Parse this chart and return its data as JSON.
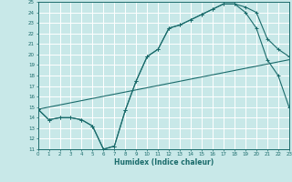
{
  "xlabel": "Humidex (Indice chaleur)",
  "bg_color": "#c8e8e8",
  "line_color": "#1a6b6b",
  "grid_color": "#ffffff",
  "ylim": [
    11,
    25
  ],
  "xlim": [
    0,
    23
  ],
  "yticks": [
    11,
    12,
    13,
    14,
    15,
    16,
    17,
    18,
    19,
    20,
    21,
    22,
    23,
    24,
    25
  ],
  "xticks": [
    0,
    1,
    2,
    3,
    4,
    5,
    6,
    7,
    8,
    9,
    10,
    11,
    12,
    13,
    14,
    15,
    16,
    17,
    18,
    19,
    20,
    21,
    22,
    23
  ],
  "line1_x": [
    0,
    1,
    2,
    3,
    4,
    5,
    6,
    7,
    8,
    9,
    10,
    11,
    12,
    13,
    14,
    15,
    16,
    17,
    18,
    19,
    20,
    21,
    22,
    23
  ],
  "line1_y": [
    14.8,
    13.8,
    14.0,
    14.0,
    13.8,
    13.2,
    11.0,
    11.3,
    14.7,
    17.5,
    19.8,
    20.5,
    22.5,
    22.8,
    23.3,
    23.8,
    24.3,
    24.8,
    24.8,
    24.5,
    24.0,
    21.5,
    20.5,
    19.8
  ],
  "line2_x": [
    0,
    1,
    2,
    3,
    4,
    5,
    6,
    7,
    8,
    9,
    10,
    11,
    12,
    13,
    14,
    15,
    16,
    17,
    18,
    19,
    20,
    21,
    22,
    23
  ],
  "line2_y": [
    14.8,
    13.8,
    14.0,
    14.0,
    13.8,
    13.2,
    11.0,
    11.3,
    14.7,
    17.5,
    19.8,
    20.5,
    22.5,
    22.8,
    23.3,
    23.8,
    24.3,
    24.8,
    24.8,
    24.0,
    22.5,
    19.5,
    18.0,
    15.0
  ],
  "line3_x": [
    0,
    23
  ],
  "line3_y": [
    14.8,
    19.5
  ]
}
